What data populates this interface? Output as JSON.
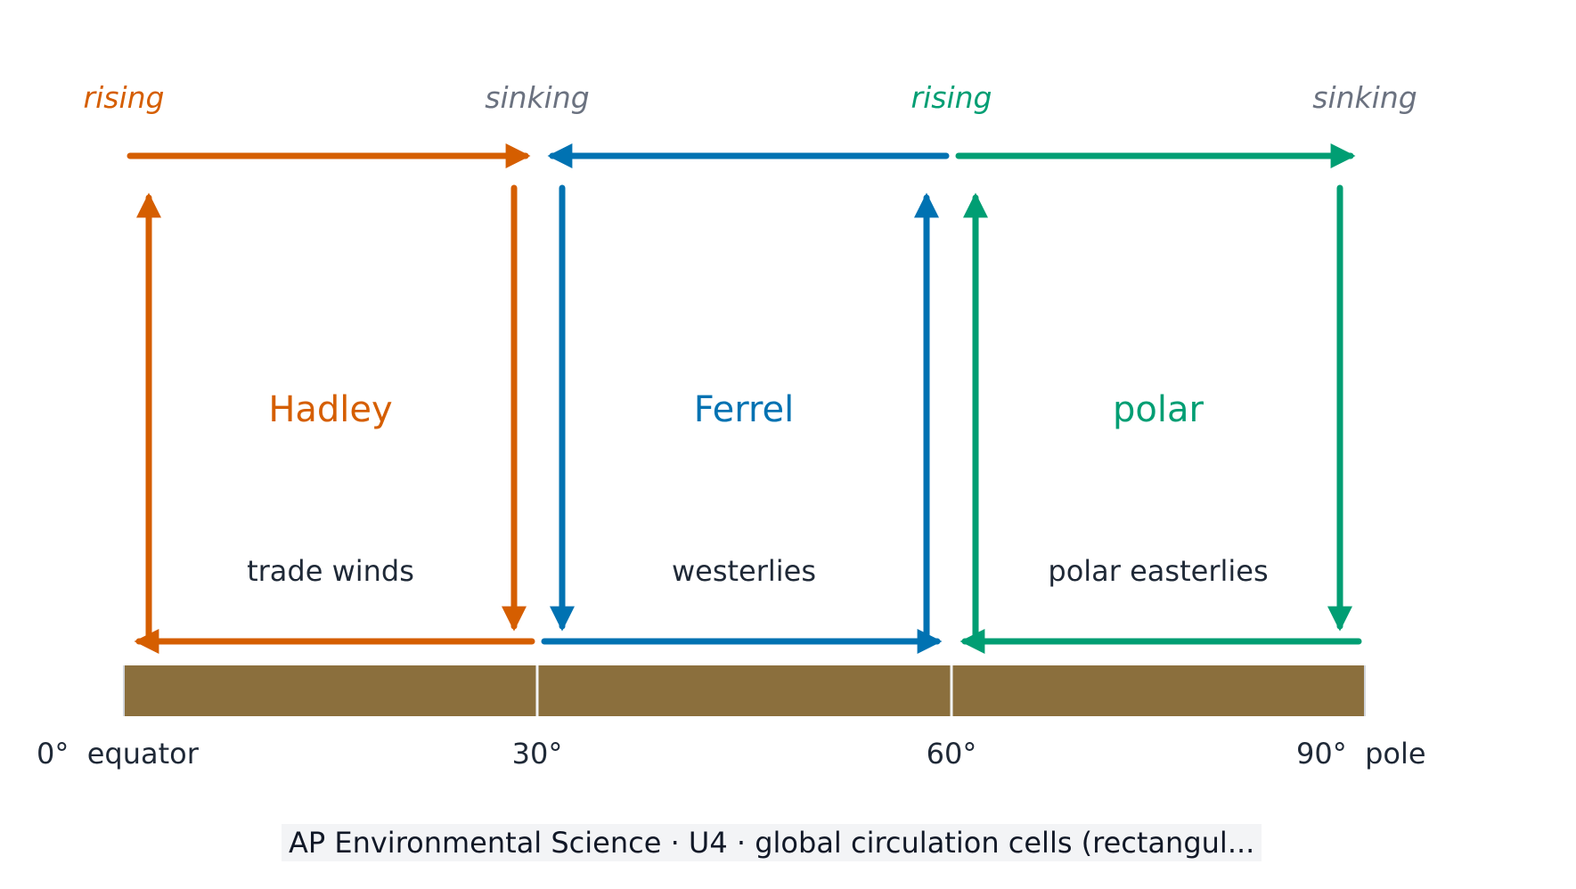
{
  "colors": {
    "hadley": "#d55e00",
    "ferrel": "#0072b2",
    "polar": "#009e73",
    "sinking": "#6b7280",
    "ground": "#8b6f3d",
    "text": "#1f2937"
  },
  "top_labels": [
    {
      "id": "hadley-rising",
      "text": "rising"
    },
    {
      "id": "hadley-sinking",
      "text": "sinking"
    },
    {
      "id": "polar-rising",
      "text": "rising"
    },
    {
      "id": "polar-sinking",
      "text": "sinking"
    }
  ],
  "cells": [
    {
      "id": "hadley",
      "name": "Hadley",
      "wind": "trade winds"
    },
    {
      "id": "ferrel",
      "name": "Ferrel",
      "wind": "westerlies"
    },
    {
      "id": "polar",
      "name": "polar",
      "wind": "polar easterlies"
    }
  ],
  "latitudes": [
    {
      "id": "lat-0",
      "text": "0°  equator"
    },
    {
      "id": "lat-30",
      "text": "30°"
    },
    {
      "id": "lat-60",
      "text": "60°"
    },
    {
      "id": "lat-90",
      "text": "90°  pole"
    }
  ],
  "caption": "AP Environmental Science · U4 · global circulation cells (rectangul..."
}
